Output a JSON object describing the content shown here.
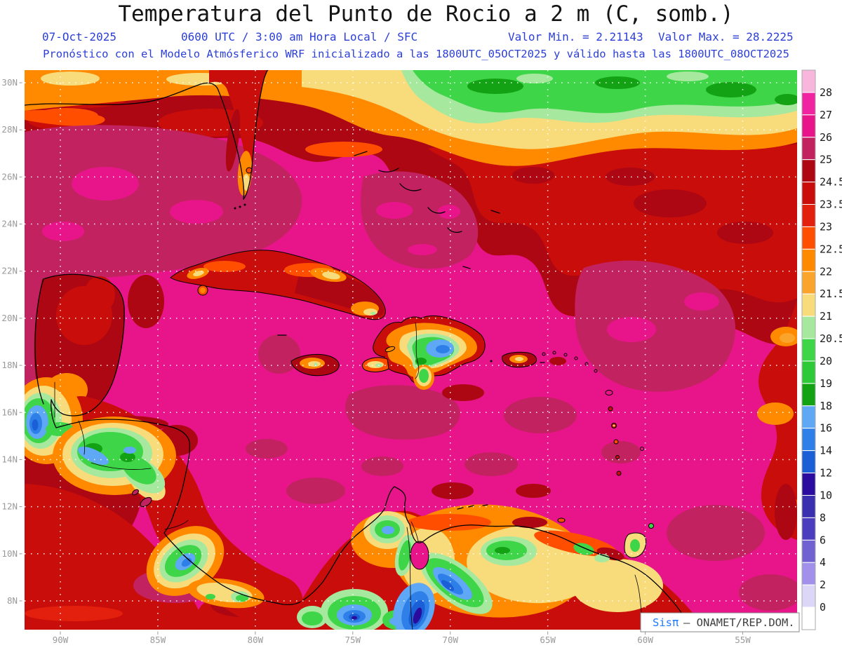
{
  "header": {
    "title": "Temperatura del Punto de Rocio a 2 m (C, somb.)",
    "date": "07-Oct-2025",
    "valid_time": "0600 UTC / 3:00 am Hora Local / SFC",
    "min_label": "Valor Min. = 2.21143",
    "max_label": "Valor Max. = 28.2225",
    "forecast_line": "Pronóstico con el Modelo Atmósferico WRF inicializado a las 1800UTC_05OCT2025 y válido hasta las  1800UTC_08OCT2025"
  },
  "map": {
    "lat_ticks": [
      {
        "label": "30N",
        "value": 30
      },
      {
        "label": "28N",
        "value": 28
      },
      {
        "label": "26N",
        "value": 26
      },
      {
        "label": "24N",
        "value": 24
      },
      {
        "label": "22N",
        "value": 22
      },
      {
        "label": "20N",
        "value": 20
      },
      {
        "label": "18N",
        "value": 18
      },
      {
        "label": "16N",
        "value": 16
      },
      {
        "label": "14N",
        "value": 14
      },
      {
        "label": "12N",
        "value": 12
      },
      {
        "label": "10N",
        "value": 10
      },
      {
        "label": "8N",
        "value": 8
      }
    ],
    "lon_ticks": [
      {
        "label": "90W",
        "value": 90
      },
      {
        "label": "85W",
        "value": 85
      },
      {
        "label": "80W",
        "value": 80
      },
      {
        "label": "75W",
        "value": 75
      },
      {
        "label": "70W",
        "value": 70
      },
      {
        "label": "65W",
        "value": 65
      },
      {
        "label": "60W",
        "value": 60
      },
      {
        "label": "55W",
        "value": 55
      }
    ]
  },
  "colorbar": {
    "labels": [
      "28",
      "27",
      "26",
      "25",
      "24.5",
      "23.5",
      "23",
      "22.5",
      "22",
      "21.5",
      "21",
      "20.5",
      "20",
      "19",
      "18",
      "16",
      "14",
      "12",
      "10",
      "8",
      "6",
      "4",
      "2",
      "0"
    ],
    "colors": [
      "#F9B6DC",
      "#F023A0",
      "#E8158A",
      "#C22260",
      "#AC0712",
      "#C90D0A",
      "#E3200E",
      "#FF4E00",
      "#FF8A00",
      "#FBA42C",
      "#F8DC7C",
      "#A6E99E",
      "#3FD549",
      "#2EC939",
      "#13A213",
      "#5FA8F5",
      "#2E7FE8",
      "#1A5FD6",
      "#2A0C9E",
      "#3A2FAE",
      "#4B3DBE",
      "#7261D0",
      "#A291EA",
      "#DCD6F7",
      "#FFFFFF"
    ]
  },
  "attribution": {
    "brand": "Sisπ",
    "rest": "– ONAMET/REP.DOM."
  },
  "chart_data": {
    "type": "heatmap",
    "title": "Temperatura del Punto de Rocio a 2 m (C, somb.)",
    "variable": "dew point temperature at 2 m",
    "units": "C",
    "valor_min": 2.21143,
    "valor_max": 28.2225,
    "levels": [
      0,
      2,
      4,
      6,
      8,
      10,
      12,
      14,
      16,
      18,
      19,
      20,
      20.5,
      21,
      21.5,
      22,
      22.5,
      23,
      23.5,
      24.5,
      25,
      26,
      27,
      28
    ],
    "palette_top_to_bottom": [
      "#F9B6DC",
      "#F023A0",
      "#E8158A",
      "#C22260",
      "#AC0712",
      "#C90D0A",
      "#E3200E",
      "#FF4E00",
      "#FF8A00",
      "#FBA42C",
      "#F8DC7C",
      "#A6E99E",
      "#3FD549",
      "#2EC939",
      "#13A213",
      "#5FA8F5",
      "#2E7FE8",
      "#1A5FD6",
      "#2A0C9E",
      "#3A2FAE",
      "#4B3DBE",
      "#7261D0",
      "#A291EA",
      "#DCD6F7",
      "#FFFFFF"
    ],
    "lat_range": [
      "8N",
      "30N"
    ],
    "lon_range": [
      "90W",
      "55W"
    ],
    "grid": "white dotted graticule every 2 deg lat / 5 deg lon",
    "legend_position": "right colorbar"
  }
}
